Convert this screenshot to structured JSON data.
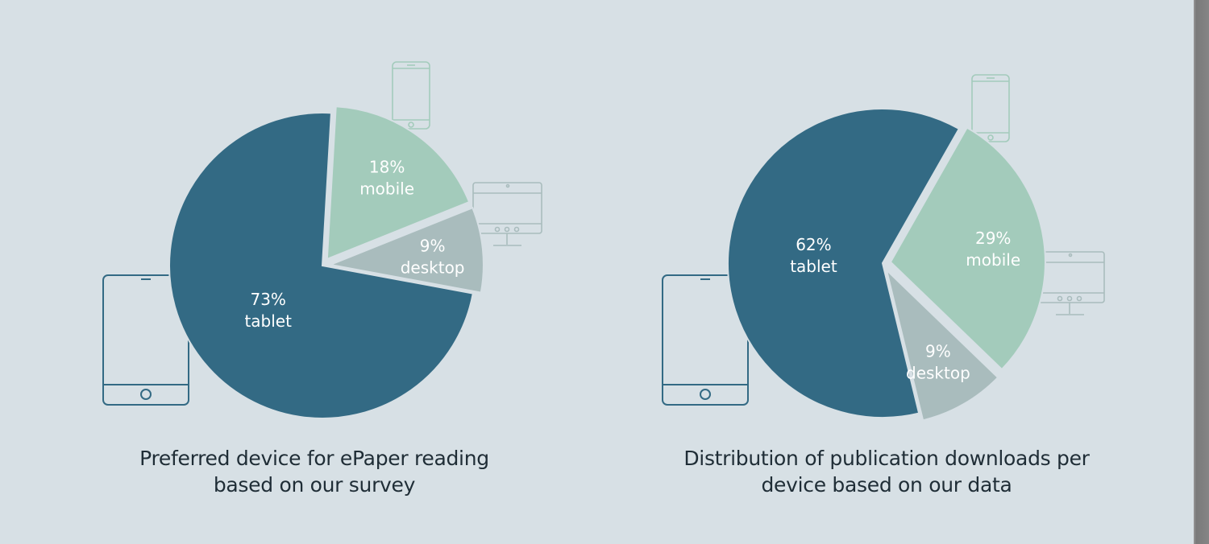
{
  "chart_data": [
    {
      "type": "pie",
      "title_lines": [
        "Preferred device for ePaper reading",
        "based on our survey"
      ],
      "slices": [
        {
          "label": "mobile",
          "value": 18,
          "value_label": "18%",
          "color": "#a3cbbb",
          "icon": "smartphone-icon"
        },
        {
          "label": "desktop",
          "value": 9,
          "value_label": "9%",
          "color": "#a9bcbd",
          "icon": "desktop-monitor-icon"
        },
        {
          "label": "tablet",
          "value": 73,
          "value_label": "73%",
          "color": "#336a84",
          "icon": "tablet-icon"
        }
      ]
    },
    {
      "type": "pie",
      "title_lines": [
        "Distribution of publication downloads per",
        "device based on our data"
      ],
      "slices": [
        {
          "label": "mobile",
          "value": 29,
          "value_label": "29%",
          "color": "#a3cbbb",
          "icon": "smartphone-icon"
        },
        {
          "label": "desktop",
          "value": 9,
          "value_label": "9%",
          "color": "#a9bcbd",
          "icon": "desktop-monitor-icon"
        },
        {
          "label": "tablet",
          "value": 62,
          "value_label": "62%",
          "color": "#336a84",
          "icon": "tablet-icon"
        }
      ]
    }
  ]
}
